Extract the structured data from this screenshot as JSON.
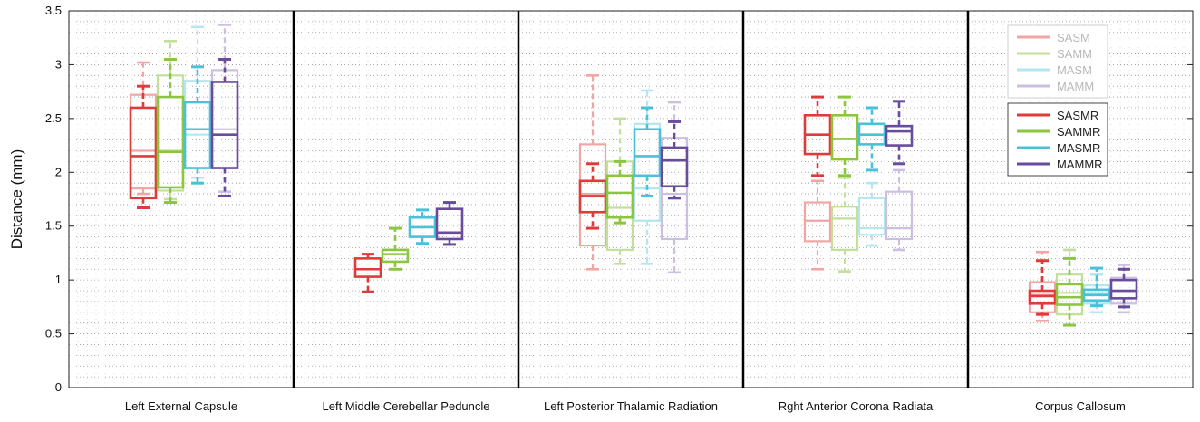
{
  "chart_data": {
    "type": "box",
    "ylabel": "Distance (mm)",
    "ylim": [
      0,
      3.5
    ],
    "yticks": [
      0,
      0.5,
      1,
      1.5,
      2,
      2.5,
      3,
      3.5
    ],
    "ytick_labels": [
      "0",
      "0.5",
      "1",
      "1.5",
      "2",
      "2.5",
      "3",
      "3.5"
    ],
    "grid": "dotted",
    "legend_placement": "top-right",
    "categories": [
      "Left External Capsule",
      "Left Middle Cerebellar Peduncle",
      "Left Posterior Thalamic Radiation",
      "Rght Anterior Corona Radiata",
      "Corpus Callosum"
    ],
    "legend_groups": [
      [
        "SASM",
        "SAMM",
        "MASM",
        "MAMM"
      ],
      [
        "SASMR",
        "SAMMR",
        "MASMR",
        "MAMMR"
      ]
    ],
    "series": [
      {
        "name": "SASM",
        "color": "#f2a5a5",
        "faded": true,
        "boxes": [
          {
            "category": 0,
            "min": 1.8,
            "q1": 1.85,
            "median": 2.2,
            "q3": 2.72,
            "max": 3.02
          },
          null,
          {
            "category": 2,
            "min": 1.1,
            "q1": 1.32,
            "median": 1.8,
            "q3": 2.26,
            "max": 2.9
          },
          {
            "category": 3,
            "min": 1.1,
            "q1": 1.36,
            "median": 1.55,
            "q3": 1.72,
            "max": 1.92
          },
          {
            "category": 4,
            "min": 0.62,
            "q1": 0.7,
            "median": 0.86,
            "q3": 0.98,
            "max": 1.26
          }
        ]
      },
      {
        "name": "SAMM",
        "color": "#c4df9b",
        "faded": true,
        "boxes": [
          {
            "category": 0,
            "min": 1.75,
            "q1": 1.83,
            "median": 2.2,
            "q3": 2.9,
            "max": 3.22
          },
          null,
          {
            "category": 2,
            "min": 1.15,
            "q1": 1.28,
            "median": 1.67,
            "q3": 2.1,
            "max": 2.5
          },
          {
            "category": 3,
            "min": 1.08,
            "q1": 1.28,
            "median": 1.57,
            "q3": 1.68,
            "max": 1.95
          },
          {
            "category": 4,
            "min": 0.58,
            "q1": 0.68,
            "median": 0.88,
            "q3": 1.05,
            "max": 1.28
          }
        ]
      },
      {
        "name": "MASM",
        "color": "#b4e6ee",
        "faded": true,
        "boxes": [
          {
            "category": 0,
            "min": 1.95,
            "q1": 2.04,
            "median": 2.35,
            "q3": 2.85,
            "max": 3.35
          },
          null,
          {
            "category": 2,
            "min": 1.15,
            "q1": 1.55,
            "median": 1.85,
            "q3": 2.45,
            "max": 2.76
          },
          {
            "category": 3,
            "min": 1.32,
            "q1": 1.42,
            "median": 1.48,
            "q3": 1.76,
            "max": 1.9
          },
          {
            "category": 4,
            "min": 0.7,
            "q1": 0.78,
            "median": 0.88,
            "q3": 0.95,
            "max": 1.05
          }
        ]
      },
      {
        "name": "MAMM",
        "color": "#cdbfe0",
        "faded": true,
        "boxes": [
          {
            "category": 0,
            "min": 1.82,
            "q1": 2.04,
            "median": 2.4,
            "q3": 2.95,
            "max": 3.37
          },
          null,
          {
            "category": 2,
            "min": 1.07,
            "q1": 1.38,
            "median": 1.8,
            "q3": 2.32,
            "max": 2.65
          },
          {
            "category": 3,
            "min": 1.28,
            "q1": 1.38,
            "median": 1.48,
            "q3": 1.82,
            "max": 2.02
          },
          {
            "category": 4,
            "min": 0.7,
            "q1": 0.78,
            "median": 0.9,
            "q3": 1.02,
            "max": 1.14
          }
        ]
      },
      {
        "name": "SASMR",
        "color": "#e03b3b",
        "faded": false,
        "boxes": [
          {
            "category": 0,
            "min": 1.67,
            "q1": 1.76,
            "median": 2.15,
            "q3": 2.6,
            "max": 2.8
          },
          {
            "category": 1,
            "min": 0.89,
            "q1": 1.03,
            "median": 1.1,
            "q3": 1.2,
            "max": 1.24
          },
          {
            "category": 2,
            "min": 1.48,
            "q1": 1.63,
            "median": 1.78,
            "q3": 1.92,
            "max": 2.08
          },
          {
            "category": 3,
            "min": 1.97,
            "q1": 2.17,
            "median": 2.35,
            "q3": 2.53,
            "max": 2.7
          },
          {
            "category": 4,
            "min": 0.68,
            "q1": 0.78,
            "median": 0.85,
            "q3": 0.9,
            "max": 1.18
          }
        ]
      },
      {
        "name": "SAMMR",
        "color": "#8cc63f",
        "faded": false,
        "boxes": [
          {
            "category": 0,
            "min": 1.72,
            "q1": 1.86,
            "median": 2.19,
            "q3": 2.7,
            "max": 3.05
          },
          {
            "category": 1,
            "min": 1.1,
            "q1": 1.17,
            "median": 1.24,
            "q3": 1.28,
            "max": 1.48
          },
          {
            "category": 2,
            "min": 1.53,
            "q1": 1.58,
            "median": 1.81,
            "q3": 1.97,
            "max": 2.1
          },
          {
            "category": 3,
            "min": 1.97,
            "q1": 2.12,
            "median": 2.31,
            "q3": 2.53,
            "max": 2.7
          },
          {
            "category": 4,
            "min": 0.58,
            "q1": 0.77,
            "median": 0.84,
            "q3": 0.96,
            "max": 1.2
          }
        ]
      },
      {
        "name": "MASMR",
        "color": "#4bc0d9",
        "faded": false,
        "boxes": [
          {
            "category": 0,
            "min": 1.9,
            "q1": 2.04,
            "median": 2.4,
            "q3": 2.65,
            "max": 2.98
          },
          {
            "category": 1,
            "min": 1.34,
            "q1": 1.4,
            "median": 1.49,
            "q3": 1.58,
            "max": 1.65
          },
          {
            "category": 2,
            "min": 1.78,
            "q1": 1.97,
            "median": 2.15,
            "q3": 2.4,
            "max": 2.6
          },
          {
            "category": 3,
            "min": 2.02,
            "q1": 2.26,
            "median": 2.35,
            "q3": 2.45,
            "max": 2.6
          },
          {
            "category": 4,
            "min": 0.76,
            "q1": 0.81,
            "median": 0.86,
            "q3": 0.91,
            "max": 1.11
          }
        ]
      },
      {
        "name": "MAMMR",
        "color": "#6a4c9c",
        "faded": false,
        "boxes": [
          {
            "category": 0,
            "min": 1.78,
            "q1": 2.04,
            "median": 2.35,
            "q3": 2.84,
            "max": 3.05
          },
          {
            "category": 1,
            "min": 1.33,
            "q1": 1.38,
            "median": 1.44,
            "q3": 1.66,
            "max": 1.72
          },
          {
            "category": 2,
            "min": 1.76,
            "q1": 1.87,
            "median": 2.11,
            "q3": 2.23,
            "max": 2.47
          },
          {
            "category": 3,
            "min": 2.08,
            "q1": 2.25,
            "median": 2.38,
            "q3": 2.43,
            "max": 2.66
          },
          {
            "category": 4,
            "min": 0.75,
            "q1": 0.83,
            "median": 0.9,
            "q3": 1.0,
            "max": 1.1
          }
        ]
      }
    ]
  }
}
